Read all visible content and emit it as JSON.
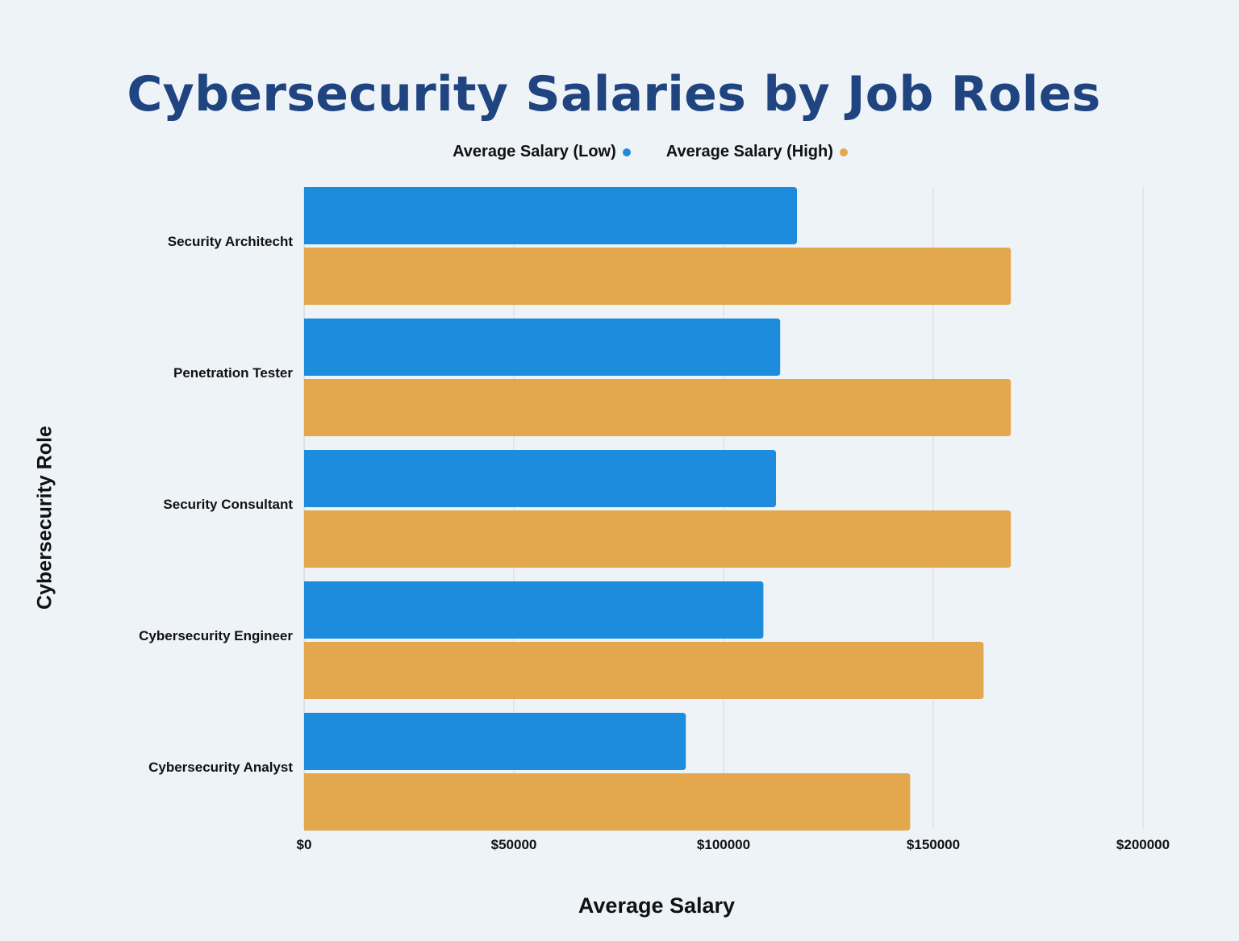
{
  "chart_data": {
    "type": "bar",
    "orientation": "horizontal",
    "title": "Cybersecurity Salaries by Job Roles",
    "xlabel": "Average Salary",
    "ylabel": "Cybersecurity Role",
    "categories": [
      "Security Architecht",
      "Penetration Tester",
      "Security Consultant",
      "Cybersecurity Engineer",
      "Cybersecurity Analyst"
    ],
    "series": [
      {
        "name": "Average Salary (Low)",
        "color": "#1e8cdc",
        "values": [
          117500,
          113500,
          112500,
          109500,
          91000
        ]
      },
      {
        "name": "Average Salary (High)",
        "color": "#e3a84e",
        "values": [
          168500,
          168500,
          168500,
          162000,
          144500
        ]
      }
    ],
    "xlim": [
      0,
      200000
    ],
    "x_ticks": [
      0,
      50000,
      100000,
      150000,
      200000
    ],
    "x_tick_labels": [
      "$0",
      "$50000",
      "$100000",
      "$150000",
      "$200000"
    ],
    "grid": true,
    "legend_position": "top-center"
  }
}
